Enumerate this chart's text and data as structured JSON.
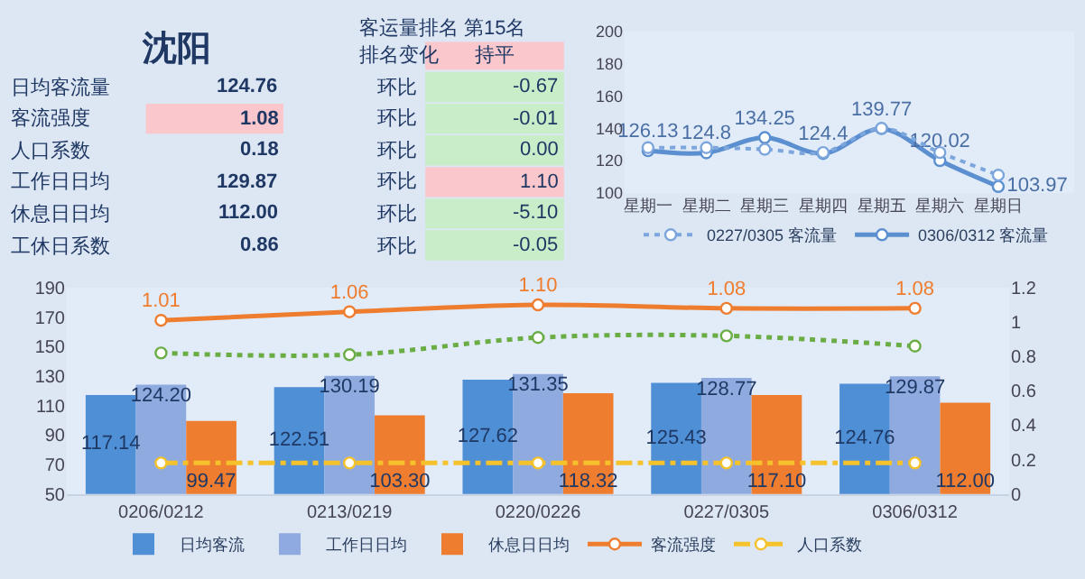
{
  "chart_data": [
    {
      "type": "other",
      "title": "沈阳",
      "annotations": [
        "客运量排名",
        "第15名",
        "排名变化",
        "持平",
        "日均客流量",
        "124.76",
        "环比",
        "-0.67",
        "客流强度",
        "1.08",
        "环比",
        "-0.01",
        "人口系数",
        "0.18",
        "环比",
        "0.00",
        "工作日日均",
        "129.87",
        "环比",
        "1.10",
        "休息日日均",
        "112.00",
        "环比",
        "-5.10",
        "工休日系数",
        "0.86",
        "环比",
        "-0.05"
      ],
      "colors": [
        null,
        null,
        null,
        "#f9c7cc",
        null,
        null,
        null,
        "#c9ecc9",
        null,
        "#f9c7cc",
        null,
        "#c9ecc9",
        null,
        null,
        null,
        "#c9ecc9",
        null,
        null,
        null,
        "#f9c7cc",
        null,
        null,
        null,
        "#c9ecc9",
        null,
        null,
        null,
        "#c9ecc9"
      ]
    },
    {
      "type": "line",
      "categories": [
        "星期一",
        "星期二",
        "星期三",
        "星期四",
        "星期五",
        "星期六",
        "星期日"
      ],
      "ylim": [
        100,
        200
      ],
      "yticks": [
        100,
        120,
        140,
        160,
        180,
        200
      ],
      "grid": false,
      "legend": "bottom",
      "marker": "circle",
      "series": [
        {
          "name": "0227/0305 客流量",
          "color": "#7da6dc",
          "line_style": "dotted",
          "values": [
            128,
            128,
            127,
            125,
            140,
            125,
            111
          ]
        },
        {
          "name": "0306/0312 客流量",
          "color": "#5b8fd0",
          "line_style": "solid",
          "values": [
            126.13,
            124.8,
            134.25,
            124.4,
            139.77,
            120.02,
            103.97
          ],
          "value_labels": [
            "126.13",
            "124.8",
            "134.25",
            "124.4",
            "139.77",
            "120.02",
            "103.97"
          ]
        }
      ]
    },
    {
      "type": "bar",
      "categories": [
        "0206/0212",
        "0213/0219",
        "0220/0226",
        "0227/0305",
        "0306/0312"
      ],
      "ylim": [
        50,
        190
      ],
      "yticks": [
        50,
        70,
        90,
        110,
        130,
        150,
        170,
        190
      ],
      "y2lim": [
        0,
        1.2
      ],
      "y2ticks": [
        0,
        0.2,
        0.4,
        0.6,
        0.8,
        1,
        1.2
      ],
      "grid": false,
      "legend": "bottom",
      "series": [
        {
          "name": "日均客流",
          "color": "#4e8fd6",
          "values": [
            117.14,
            122.51,
            127.62,
            125.43,
            124.76
          ],
          "value_labels": [
            "117.14",
            "122.51",
            "127.62",
            "125.43",
            "124.76"
          ]
        },
        {
          "name": "工作日日均",
          "color": "#8eaadf",
          "values": [
            124.2,
            130.19,
            131.35,
            128.77,
            129.87
          ],
          "value_labels": [
            "124.20",
            "130.19",
            "131.35",
            "128.77",
            "129.87"
          ]
        },
        {
          "name": "休息日日均",
          "color": "#ef7d2f",
          "values": [
            99.47,
            103.3,
            118.32,
            117.1,
            112.0
          ],
          "value_labels": [
            "99.47",
            "103.30",
            "118.32",
            "117.10",
            "112.00"
          ]
        },
        {
          "name": "客流强度",
          "type": "line",
          "axis": "y2",
          "color": "#ef7d2f",
          "line_style": "solid",
          "marker": "circle",
          "values": [
            1.01,
            1.06,
            1.1,
            1.08,
            1.08
          ],
          "value_labels": [
            "1.01",
            "1.06",
            "1.10",
            "1.08",
            "1.08"
          ]
        },
        {
          "name": "人口系数",
          "type": "line",
          "axis": "y2",
          "color": "#f5c22b",
          "line_style": "dashed",
          "marker": "circle",
          "values": [
            0.18,
            0.18,
            0.18,
            0.18,
            0.18
          ]
        },
        {
          "type": "line",
          "axis": "y2",
          "color": "#6aad45",
          "line_style": "dotted",
          "marker": "circle",
          "values": [
            0.82,
            0.81,
            0.91,
            0.92,
            0.86
          ]
        }
      ]
    }
  ]
}
